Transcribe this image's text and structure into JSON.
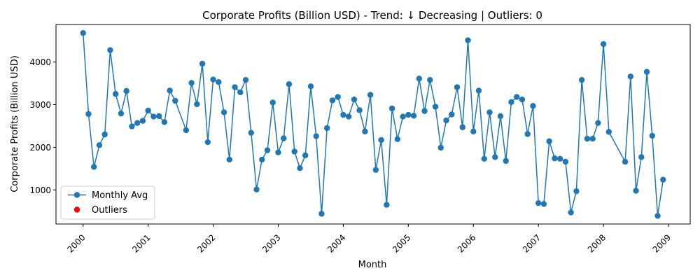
{
  "chart_data": {
    "type": "line",
    "title": "Corporate Profits (Billion USD) - Trend: ↓ Decreasing | Outliers: 0",
    "xlabel": "Month",
    "ylabel": "Corporate Profits (Billion USD)",
    "x_ticks": [
      "2000",
      "2001",
      "2002",
      "2003",
      "2004",
      "2005",
      "2006",
      "2007",
      "2008",
      "2009"
    ],
    "x_range": [
      "1999-08",
      "2009-05"
    ],
    "y_ticks": [
      1000,
      2000,
      3000,
      4000
    ],
    "ylim": [
      200,
      4880
    ],
    "grid": false,
    "legend_position": "lower-left",
    "colors": {
      "line": "#1f77b4",
      "outliers": "#ff0000"
    },
    "series": [
      {
        "name": "Monthly Avg",
        "x": [
          "2000-01",
          "2000-02",
          "2000-03",
          "2000-04",
          "2000-05",
          "2000-06",
          "2000-07",
          "2000-08",
          "2000-09",
          "2000-10",
          "2000-11",
          "2000-12",
          "2001-01",
          "2001-02",
          "2001-03",
          "2001-04",
          "2001-05",
          "2001-06",
          "2001-08",
          "2001-09",
          "2001-10",
          "2001-11",
          "2001-12",
          "2002-01",
          "2002-02",
          "2002-03",
          "2002-04",
          "2002-05",
          "2002-06",
          "2002-07",
          "2002-08",
          "2002-09",
          "2002-10",
          "2002-11",
          "2002-12",
          "2003-01",
          "2003-02",
          "2003-03",
          "2003-04",
          "2003-05",
          "2003-06",
          "2003-07",
          "2003-08",
          "2003-09",
          "2003-10",
          "2003-11",
          "2003-12",
          "2004-01",
          "2004-02",
          "2004-03",
          "2004-04",
          "2004-05",
          "2004-06",
          "2004-07",
          "2004-08",
          "2004-09",
          "2004-10",
          "2004-11",
          "2004-12",
          "2005-01",
          "2005-02",
          "2005-03",
          "2005-04",
          "2005-05",
          "2005-06",
          "2005-07",
          "2005-08",
          "2005-09",
          "2005-10",
          "2005-11",
          "2005-12",
          "2006-01",
          "2006-02",
          "2006-03",
          "2006-04",
          "2006-05",
          "2006-06",
          "2006-07",
          "2006-08",
          "2006-09",
          "2006-10",
          "2006-11",
          "2006-12",
          "2007-01",
          "2007-02",
          "2007-03",
          "2007-04",
          "2007-05",
          "2007-06",
          "2007-07",
          "2007-08",
          "2007-09",
          "2007-10",
          "2007-11",
          "2007-12",
          "2008-01",
          "2008-02",
          "2008-05",
          "2008-06",
          "2008-07",
          "2008-08",
          "2008-09",
          "2008-10",
          "2008-11",
          "2008-12"
        ],
        "values": [
          4680,
          2780,
          1540,
          2050,
          2300,
          4280,
          3250,
          2790,
          3320,
          2490,
          2570,
          2620,
          2860,
          2720,
          2730,
          2590,
          3330,
          3090,
          2400,
          3510,
          3010,
          3960,
          2120,
          3590,
          3530,
          2820,
          1710,
          3410,
          3290,
          3580,
          2340,
          1010,
          1710,
          1930,
          3050,
          1880,
          2210,
          3480,
          1900,
          1510,
          1810,
          3430,
          2260,
          440,
          2450,
          3100,
          3180,
          2760,
          2720,
          3120,
          2870,
          2370,
          3230,
          1470,
          2170,
          650,
          2910,
          2190,
          2720,
          2760,
          2740,
          3610,
          2850,
          3580,
          2950,
          1990,
          2630,
          2770,
          3410,
          2470,
          4510,
          2370,
          3330,
          1730,
          2820,
          1770,
          2730,
          1680,
          3060,
          3180,
          3120,
          2310,
          2970,
          690,
          670,
          2140,
          1740,
          1730,
          1660,
          470,
          970,
          3580,
          2200,
          2200,
          2570,
          4420,
          2360,
          1660,
          3660,
          980,
          1770,
          3770,
          2270,
          390,
          1240
        ]
      },
      {
        "name": "Outliers",
        "x": [],
        "values": []
      }
    ]
  }
}
